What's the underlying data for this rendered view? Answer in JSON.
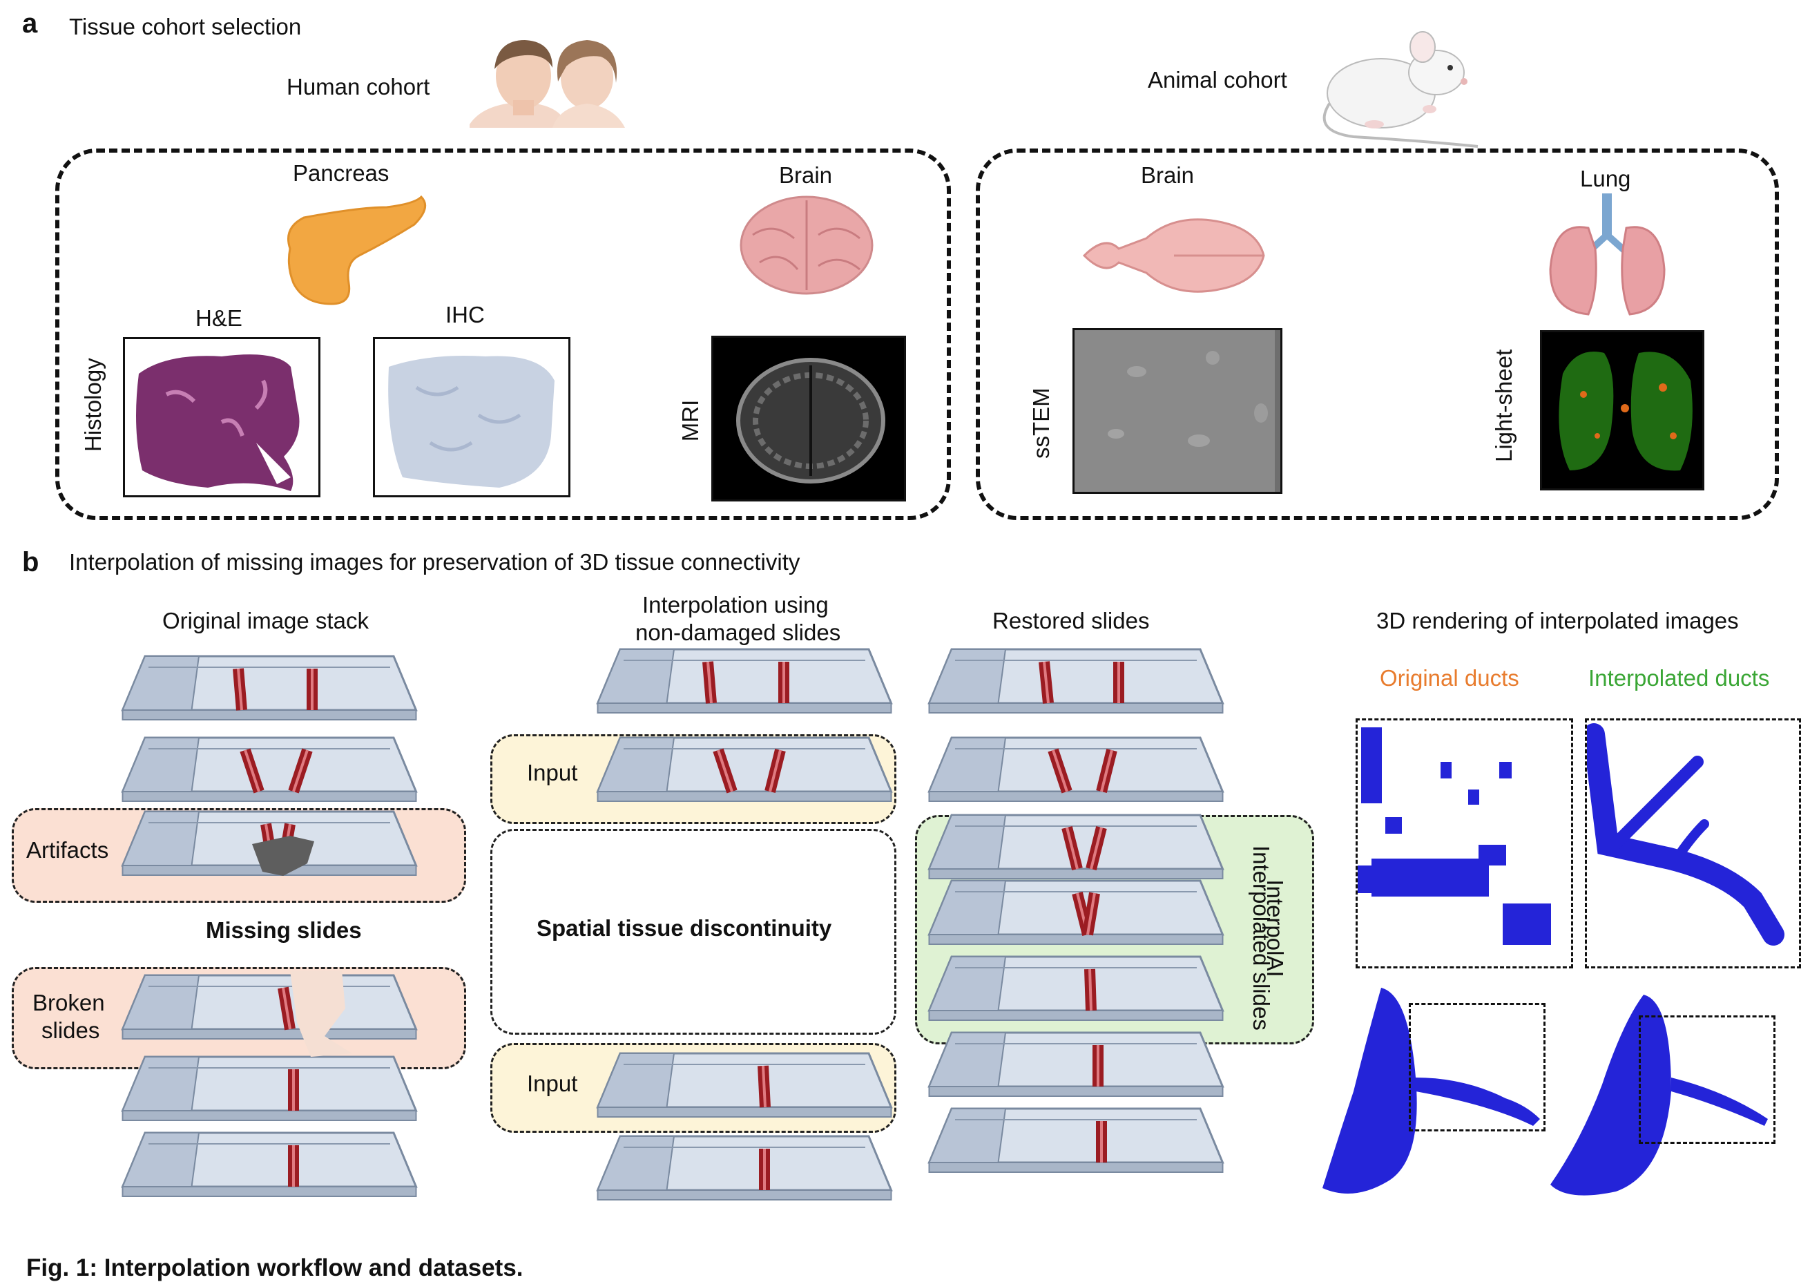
{
  "panel_a": {
    "letter": "a",
    "title": "Tissue cohort selection",
    "human_cohort": "Human cohort",
    "animal_cohort": "Animal cohort",
    "pancreas": "Pancreas",
    "brain_human": "Brain",
    "brain_mouse": "Brain",
    "lung": "Lung",
    "he": "H&E",
    "ihc": "IHC",
    "histology": "Histology",
    "mri": "MRI",
    "sstem": "ssTEM",
    "lightsheet": "Light-sheet"
  },
  "panel_b": {
    "letter": "b",
    "title": "Interpolation of missing images for preservation of 3D tissue connectivity",
    "original_stack": "Original image stack",
    "interp_line1": "Interpolation using",
    "interp_line2": "non-damaged slides",
    "restored": "Restored slides",
    "rendering": "3D rendering of interpolated images",
    "original_ducts": "Original ducts",
    "interpolated_ducts": "Interpolated ducts",
    "artifacts": "Artifacts",
    "missing": "Missing slides",
    "broken1": "Broken",
    "broken2": "slides",
    "discontinuity": "Spatial tissue discontinuity",
    "input_top": "Input",
    "input_bottom": "Input",
    "interpolai": "InterpolAI",
    "interpolated_slides": "Interpolated slides"
  },
  "colors": {
    "original_ducts": "#e87c2e",
    "interpolated_ducts": "#3aa635",
    "artifact_fill": "#fbe0d3",
    "input_fill": "#fdf4d8",
    "interp_fill": "#dff2d3",
    "duct_blue": "#2a2ad6",
    "vessel": "#9b1c22"
  },
  "caption_fragment": "Fig. 1: Interpolation workflow and datasets."
}
